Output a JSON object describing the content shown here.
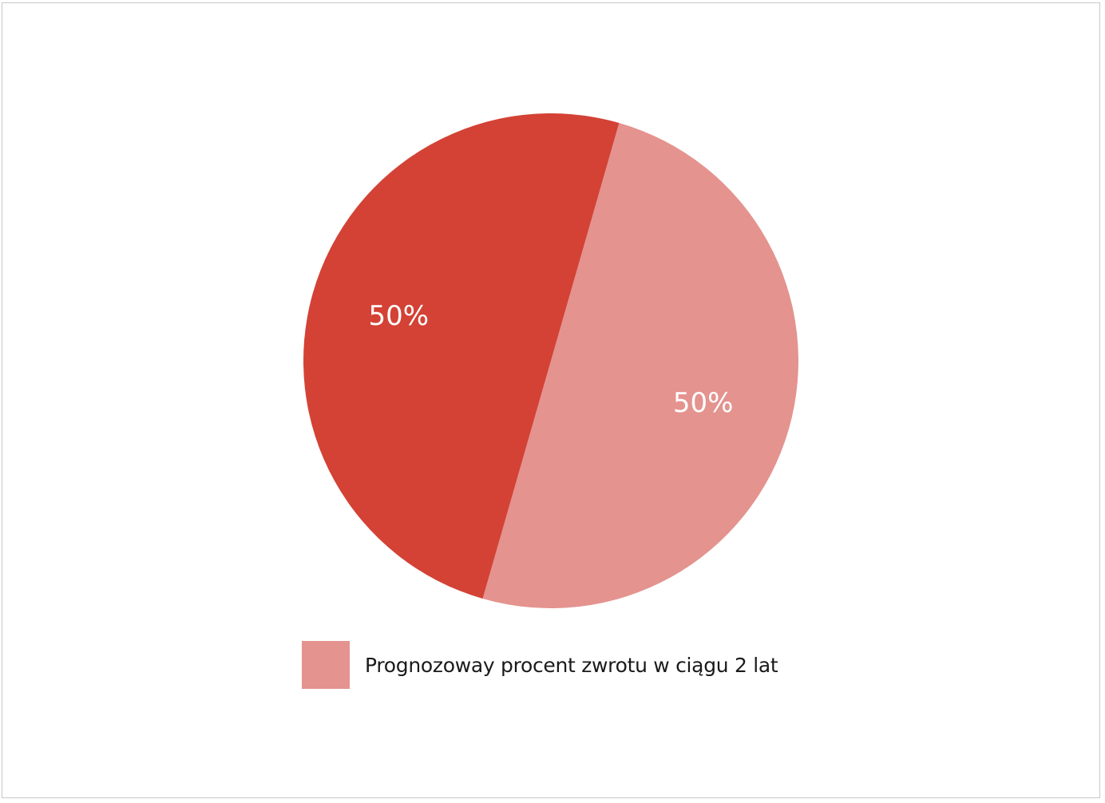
{
  "chart_data": {
    "type": "pie",
    "title": "",
    "slices": [
      {
        "label": "",
        "value": 50,
        "display": "50%",
        "color": "#d34235"
      },
      {
        "label": "Prognozoway procent zwrotu w ciągu 2 lat",
        "value": 50,
        "display": "50%",
        "color": "#e4938f"
      }
    ],
    "legend": {
      "placement": "bottom",
      "entries": [
        {
          "label": "Prognozoway procent zwrotu w ciągu 2 lat",
          "color": "#e4938f"
        }
      ]
    }
  }
}
